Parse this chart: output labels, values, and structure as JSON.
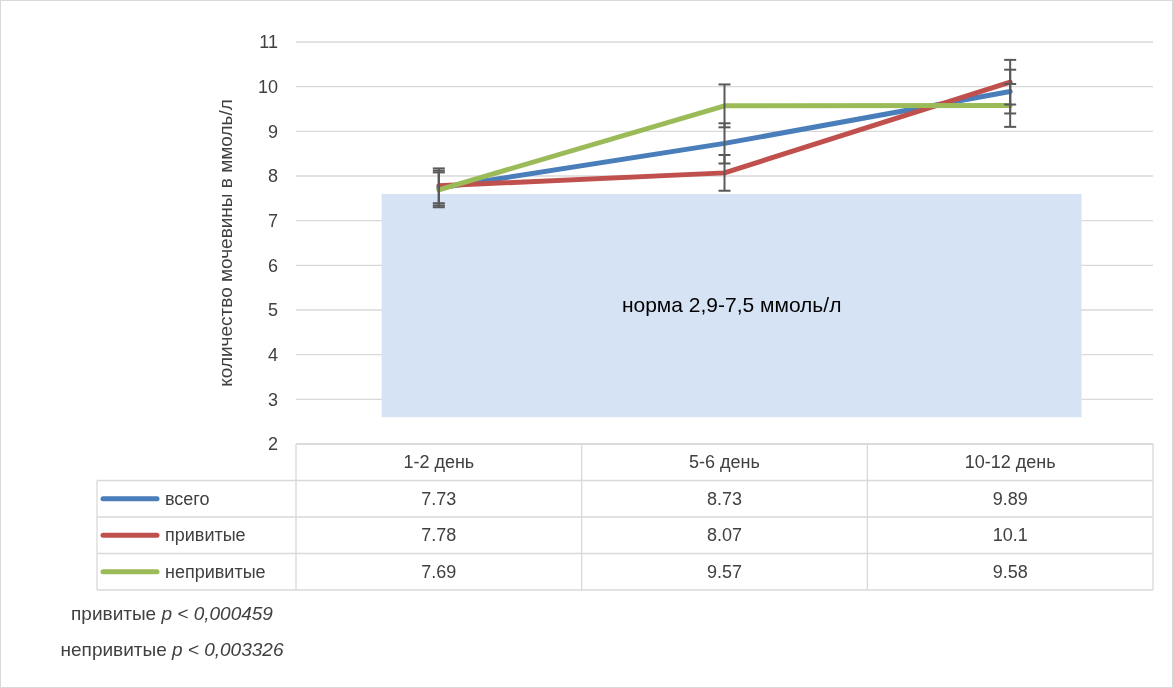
{
  "chart_data": {
    "type": "line",
    "ylabel": "количество мочевины в ммоль/л",
    "categories": [
      "1-2 день",
      "5-6 день",
      "10-12 день"
    ],
    "series": [
      {
        "name": "всего",
        "color": "#4a7ebb",
        "values": [
          7.73,
          8.73,
          9.89
        ],
        "errors": [
          0.39,
          0.45,
          0.49
        ]
      },
      {
        "name": "привитые",
        "color": "#c0504d",
        "values": [
          7.78,
          8.07,
          10.1
        ],
        "errors": [
          0.39,
          0.4,
          0.5
        ]
      },
      {
        "name": "непривитые",
        "color": "#9bbb59",
        "values": [
          7.69,
          9.57,
          9.58
        ],
        "errors": [
          0.39,
          0.48,
          0.48
        ]
      }
    ],
    "ylim": [
      2,
      11
    ],
    "yticks": [
      2,
      3,
      4,
      5,
      6,
      7,
      8,
      9,
      10,
      11
    ],
    "grid": "y",
    "data_labels": true,
    "legend": "bottom",
    "marker": "none",
    "line_style": "solid",
    "bands": [
      {
        "axis": "y",
        "from": 2.6,
        "to": 7.6,
        "label": "норма 2,9-7,5 ммоль/л",
        "color": "#d6e3f5"
      }
    ],
    "annotations": [
      "привитые p < 0,000459",
      "непривитые p < 0,003326"
    ]
  }
}
